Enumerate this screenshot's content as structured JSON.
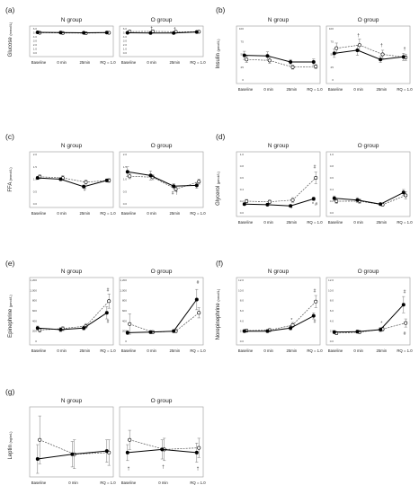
{
  "chart_data": [
    {
      "id": "a",
      "panel_label": "(a)",
      "ylabel": "Glucose",
      "unit": "(mmol/L)",
      "categories": [
        "Baseline",
        "0 min",
        "25min",
        "RQ = 1.0"
      ],
      "groups": [
        {
          "title": "N group",
          "ylim": [
            0,
            6
          ],
          "yticks": [
            "0.0",
            "1.0",
            "2.0",
            "3.0",
            "4.0",
            "5.0",
            "6.0"
          ],
          "series": [
            {
              "marker": "filled",
              "values": [
                5.1,
                5.05,
                5.0,
                5.05
              ],
              "err": [
                0.15,
                0.12,
                0.12,
                0.12
              ]
            },
            {
              "marker": "open",
              "values": [
                5.0,
                4.95,
                4.9,
                5.0
              ],
              "err": [
                0.15,
                0.12,
                0.12,
                0.12
              ]
            }
          ],
          "annotations": []
        },
        {
          "title": "O group",
          "ylim": [
            0,
            6
          ],
          "yticks": [
            "0.0",
            "1.0",
            "2.0",
            "3.0",
            "4.0",
            "5.0",
            "6.0"
          ],
          "series": [
            {
              "marker": "filled",
              "values": [
                5.0,
                4.95,
                4.95,
                5.2
              ],
              "err": [
                0.12,
                0.12,
                0.12,
                0.12
              ]
            },
            {
              "marker": "open",
              "values": [
                5.3,
                5.35,
                5.25,
                5.25
              ],
              "err": [
                0.15,
                0.15,
                0.15,
                0.15
              ]
            }
          ],
          "annotations": [
            {
              "text": "†",
              "x": 1,
              "y": 5.7
            },
            {
              "text": "†",
              "x": 2,
              "y": 5.6
            }
          ]
        }
      ]
    },
    {
      "id": "b",
      "panel_label": "(b)",
      "ylabel": "Insulin",
      "unit": "(pmol/L)",
      "categories": [
        "Baseline",
        "0 min",
        "25min",
        "RQ = 1.0"
      ],
      "groups": [
        {
          "title": "N group",
          "ylim": [
            0,
            100
          ],
          "yticks": [
            "0",
            "25",
            "50",
            "75",
            "100"
          ],
          "series": [
            {
              "marker": "filled",
              "values": [
                48,
                47,
                35,
                35
              ],
              "err": [
                8,
                8,
                5,
                6
              ]
            },
            {
              "marker": "open",
              "values": [
                40,
                38,
                25,
                26
              ],
              "err": [
                6,
                6,
                4,
                4
              ]
            }
          ],
          "annotations": []
        },
        {
          "title": "O group",
          "ylim": [
            0,
            100
          ],
          "yticks": [
            "0",
            "25",
            "50",
            "75",
            "100"
          ],
          "series": [
            {
              "marker": "filled",
              "values": [
                52,
                58,
                40,
                45
              ],
              "err": [
                8,
                10,
                6,
                7
              ]
            },
            {
              "marker": "open",
              "values": [
                62,
                68,
                50,
                44
              ],
              "err": [
                10,
                12,
                8,
                6
              ]
            }
          ],
          "annotations": [
            {
              "text": "†",
              "x": 1,
              "y": 84
            },
            {
              "text": "†",
              "x": 2,
              "y": 65
            },
            {
              "text": "†",
              "x": 3,
              "y": 58
            }
          ]
        }
      ]
    },
    {
      "id": "c",
      "panel_label": "(c)",
      "ylabel": "FFA",
      "unit": "(mmol/L)",
      "categories": [
        "Baseline",
        "0 min",
        "25min",
        "RQ = 1.0"
      ],
      "groups": [
        {
          "title": "N group",
          "ylim": [
            0,
            2.0
          ],
          "yticks": [
            "0.0",
            "0.5",
            "1.0",
            "1.5",
            "2.0"
          ],
          "series": [
            {
              "marker": "filled",
              "values": [
                1.05,
                1.0,
                0.7,
                0.95
              ],
              "err": [
                0.06,
                0.06,
                0.06,
                0.06
              ]
            },
            {
              "marker": "open",
              "values": [
                1.1,
                1.05,
                0.88,
                0.95
              ],
              "err": [
                0.08,
                0.1,
                0.08,
                0.08
              ]
            }
          ],
          "annotations": [
            {
              "text": "#",
              "x": 2,
              "y": 0.52
            }
          ]
        },
        {
          "title": "O group",
          "ylim": [
            0,
            2.0
          ],
          "yticks": [
            "0.0",
            "0.5",
            "1.0",
            "1.5",
            "2.0"
          ],
          "series": [
            {
              "marker": "filled",
              "values": [
                1.3,
                1.15,
                0.72,
                0.75
              ],
              "err": [
                0.2,
                0.18,
                0.1,
                0.12
              ]
            },
            {
              "marker": "open",
              "values": [
                1.12,
                1.08,
                0.6,
                0.9
              ],
              "err": [
                0.1,
                0.1,
                0.08,
                0.1
              ]
            }
          ],
          "annotations": [
            {
              "text": "# †",
              "x": 2,
              "y": 0.38
            }
          ]
        }
      ]
    },
    {
      "id": "d",
      "panel_label": "(d)",
      "ylabel": "Glycerol",
      "unit": "(μmol/L)",
      "categories": [
        "Baseline",
        "0 min",
        "25min",
        "RQ = 1.0"
      ],
      "groups": [
        {
          "title": "N group",
          "ylim": [
            0,
            1.0
          ],
          "yticks": [
            "0.0",
            "0.2",
            "0.4",
            "0.6",
            "0.8",
            "1.0"
          ],
          "series": [
            {
              "marker": "filled",
              "values": [
                0.15,
                0.14,
                0.12,
                0.24
              ],
              "err": [
                0.02,
                0.02,
                0.02,
                0.03
              ]
            },
            {
              "marker": "open",
              "values": [
                0.2,
                0.19,
                0.22,
                0.6
              ],
              "err": [
                0.03,
                0.03,
                0.04,
                0.1
              ]
            }
          ],
          "annotations": [
            {
              "text": "#",
              "x": 3,
              "y": 0.76
            },
            {
              "text": "*",
              "x": 2,
              "y": 0.05
            },
            {
              "text": "* #",
              "x": 3,
              "y": 0.12
            }
          ]
        },
        {
          "title": "O group",
          "ylim": [
            0,
            1.0
          ],
          "yticks": [
            "0.0",
            "0.2",
            "0.4",
            "0.6",
            "0.8",
            "1.0"
          ],
          "series": [
            {
              "marker": "filled",
              "values": [
                0.25,
                0.22,
                0.15,
                0.35
              ],
              "err": [
                0.04,
                0.04,
                0.02,
                0.05
              ]
            },
            {
              "marker": "open",
              "values": [
                0.2,
                0.2,
                0.14,
                0.3
              ],
              "err": [
                0.04,
                0.04,
                0.02,
                0.06
              ]
            }
          ],
          "annotations": []
        }
      ]
    },
    {
      "id": "e",
      "panel_label": "(e)",
      "ylabel": "Epinephrine",
      "unit": "(pmol/L)",
      "categories": [
        "Baseline",
        "0 min",
        "25min",
        "RQ = 1.0"
      ],
      "groups": [
        {
          "title": "N group",
          "ylim": [
            0,
            1200
          ],
          "yticks": [
            "0",
            "200",
            "400",
            "600",
            "800",
            "1,000",
            "1,200"
          ],
          "series": [
            {
              "marker": "filled",
              "values": [
                260,
                230,
                260,
                560
              ],
              "err": [
                40,
                40,
                40,
                120
              ]
            },
            {
              "marker": "open",
              "values": [
                220,
                250,
                300,
                790
              ],
              "err": [
                40,
                40,
                50,
                140
              ]
            }
          ],
          "annotations": [
            {
              "text": "#",
              "x": 3,
              "y": 980
            },
            {
              "text": "#",
              "x": 3,
              "y": 360
            }
          ]
        },
        {
          "title": "O group",
          "ylim": [
            0,
            1200
          ],
          "yticks": [
            "0",
            "200",
            "400",
            "600",
            "800",
            "1,000",
            "1,200"
          ],
          "series": [
            {
              "marker": "filled",
              "values": [
                170,
                180,
                200,
                820
              ],
              "err": [
                40,
                30,
                30,
                200
              ]
            },
            {
              "marker": "open",
              "values": [
                340,
                180,
                200,
                560
              ],
              "err": [
                200,
                30,
                30,
                100
              ]
            }
          ],
          "annotations": [
            {
              "text": "#",
              "x": 3,
              "y": 1130
            }
          ]
        }
      ]
    },
    {
      "id": "f",
      "panel_label": "(f)",
      "ylabel": "Norepinephrine",
      "unit": "(nmol/L)",
      "categories": [
        "Baseline",
        "0 min",
        "25min",
        "RQ = 1.0"
      ],
      "groups": [
        {
          "title": "N group",
          "ylim": [
            0,
            12
          ],
          "yticks": [
            "0.0",
            "2.0",
            "4.0",
            "6.0",
            "8.0",
            "10.0",
            "12.0"
          ],
          "series": [
            {
              "marker": "filled",
              "values": [
                2.0,
                2.0,
                2.6,
                5.0
              ],
              "err": [
                0.3,
                0.3,
                0.4,
                0.6
              ]
            },
            {
              "marker": "open",
              "values": [
                2.1,
                2.2,
                3.2,
                7.8
              ],
              "err": [
                0.3,
                0.3,
                0.5,
                1.2
              ]
            }
          ],
          "annotations": [
            {
              "text": "#",
              "x": 3,
              "y": 9.6
            },
            {
              "text": "#",
              "x": 3,
              "y": 3.6
            },
            {
              "text": "*",
              "x": 2,
              "y": 3.9
            }
          ]
        },
        {
          "title": "O group",
          "ylim": [
            0,
            12
          ],
          "yticks": [
            "0.0",
            "2.0",
            "4.0",
            "6.0",
            "8.0",
            "10.0",
            "12.0"
          ],
          "series": [
            {
              "marker": "filled",
              "values": [
                1.8,
                1.9,
                2.3,
                7.2
              ],
              "err": [
                0.3,
                0.3,
                0.4,
                1.6
              ]
            },
            {
              "marker": "open",
              "values": [
                1.6,
                1.8,
                2.4,
                3.6
              ],
              "err": [
                0.3,
                0.3,
                0.4,
                0.8
              ]
            }
          ],
          "annotations": [
            {
              "text": "#",
              "x": 3,
              "y": 9.4
            },
            {
              "text": "#",
              "x": 3,
              "y": 1.2
            },
            {
              "text": "*",
              "x": 2,
              "y": 3.3
            }
          ]
        }
      ]
    },
    {
      "id": "g",
      "panel_label": "(g)",
      "ylabel": "Leptin",
      "unit": "(ng/mL)",
      "categories": [
        "Baseline",
        "0 min",
        "RQ = 1.0"
      ],
      "groups": [
        {
          "title": "N group",
          "ylim": [
            0,
            40
          ],
          "yticks": [],
          "series": [
            {
              "marker": "filled",
              "values": [
                9,
                12,
                14
              ],
              "err": [
                9,
                8,
                7
              ]
            },
            {
              "marker": "open",
              "values": [
                21,
                12,
                13
              ],
              "err": [
                15,
                9,
                8
              ]
            }
          ],
          "annotations": []
        },
        {
          "title": "O group",
          "ylim": [
            0,
            40
          ],
          "yticks": [],
          "series": [
            {
              "marker": "filled",
              "values": [
                13,
                15,
                13
              ],
              "err": [
                5,
                6,
                6
              ]
            },
            {
              "marker": "open",
              "values": [
                21,
                15,
                16
              ],
              "err": [
                6,
                7,
                6
              ]
            }
          ],
          "annotations": [
            {
              "text": "†",
              "x": 0,
              "y": 2
            },
            {
              "text": "†",
              "x": 1,
              "y": 3
            },
            {
              "text": "†",
              "x": 2,
              "y": 2
            }
          ]
        }
      ]
    }
  ]
}
